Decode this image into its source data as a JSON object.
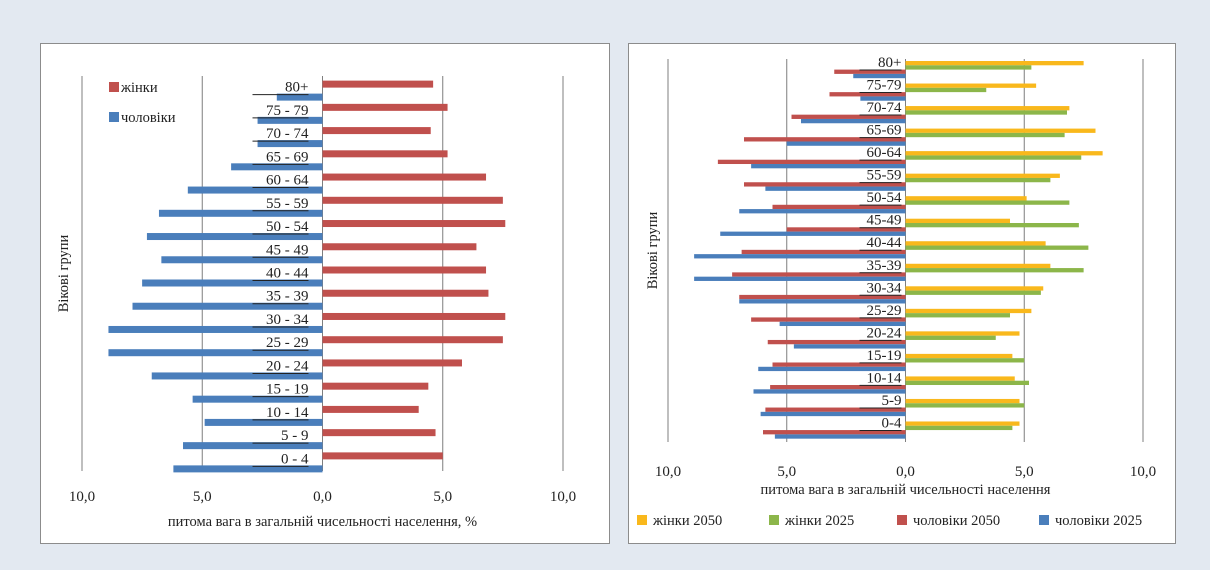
{
  "colors": {
    "male": "#4a7ebb",
    "female": "#c0504d",
    "female_2050": "#f9b81c",
    "female_2025": "#8cb64a",
    "male_2050": "#c0504d",
    "male_2025": "#4a7ebb"
  },
  "chart_data": [
    {
      "type": "bar",
      "orientation": "horizontal",
      "ylabel": "Вікові групи",
      "xlabel": "питома вага в загальній чисельності населення, %",
      "xlim": [
        -10,
        10
      ],
      "xticks": [
        "10,0",
        "5,0",
        "0,0",
        "5,0",
        "10,0"
      ],
      "categories": [
        "80+",
        "75 - 79",
        "70 - 74",
        "65 - 69",
        "60 - 64",
        "55 - 59",
        "50 - 54",
        "45 - 49",
        "40 - 44",
        "35 - 39",
        "30 - 34",
        "25 - 29",
        "20 - 24",
        "15 - 19",
        "10 - 14",
        "5 - 9",
        "0 - 4"
      ],
      "legend": [
        "жінки",
        "чоловіки"
      ],
      "legend_position": "top-left",
      "series": [
        {
          "name": "жінки",
          "values": [
            4.6,
            5.2,
            4.5,
            5.2,
            6.8,
            7.5,
            7.6,
            6.4,
            6.8,
            6.9,
            7.6,
            7.5,
            5.8,
            4.4,
            4.0,
            4.7,
            5.0
          ]
        },
        {
          "name": "чоловіки",
          "values": [
            -1.9,
            -2.7,
            -2.7,
            -3.8,
            -5.6,
            -6.8,
            -7.3,
            -6.7,
            -7.5,
            -7.9,
            -8.9,
            -8.9,
            -7.1,
            -5.4,
            -4.9,
            -5.8,
            -6.2
          ]
        }
      ]
    },
    {
      "type": "bar",
      "orientation": "horizontal",
      "ylabel": "Вікові групи",
      "xlabel": "питома вага в загальній чисельності населення",
      "xlim": [
        -10,
        10
      ],
      "xticks": [
        "10,0",
        "5,0",
        "0,0",
        "5,0",
        "10,0"
      ],
      "categories": [
        "80+",
        "75-79",
        "70-74",
        "65-69",
        "60-64",
        "55-59",
        "50-54",
        "45-49",
        "40-44",
        "35-39",
        "30-34",
        "25-29",
        "20-24",
        "15-19",
        "10-14",
        "5-9",
        "0-4"
      ],
      "legend": [
        "жінки 2050",
        "жінки 2025",
        "чоловіки 2050",
        "чоловіки 2025"
      ],
      "legend_position": "bottom",
      "series": [
        {
          "name": "жінки 2050",
          "values": [
            7.5,
            5.5,
            6.9,
            8.0,
            8.3,
            6.5,
            5.1,
            4.4,
            5.9,
            6.1,
            5.8,
            5.3,
            4.8,
            4.5,
            4.6,
            4.8,
            4.8
          ]
        },
        {
          "name": "жінки 2025",
          "values": [
            5.3,
            3.4,
            6.8,
            6.7,
            7.4,
            6.1,
            6.9,
            7.3,
            7.7,
            7.5,
            5.7,
            4.4,
            3.8,
            5.0,
            5.2,
            5.0,
            4.5
          ]
        },
        {
          "name": "чоловіки 2050",
          "values": [
            -3.0,
            -3.2,
            -4.8,
            -6.8,
            -7.9,
            -6.8,
            -5.6,
            -5.0,
            -6.9,
            -7.3,
            -7.0,
            -6.5,
            -5.8,
            -5.6,
            -5.7,
            -5.9,
            -6.0
          ]
        },
        {
          "name": "чоловіки 2025",
          "values": [
            -2.2,
            -1.9,
            -4.4,
            -5.0,
            -6.5,
            -5.9,
            -7.0,
            -7.8,
            -8.9,
            -8.9,
            -7.0,
            -5.3,
            -4.7,
            -6.2,
            -6.4,
            -6.1,
            -5.5
          ]
        }
      ]
    }
  ]
}
